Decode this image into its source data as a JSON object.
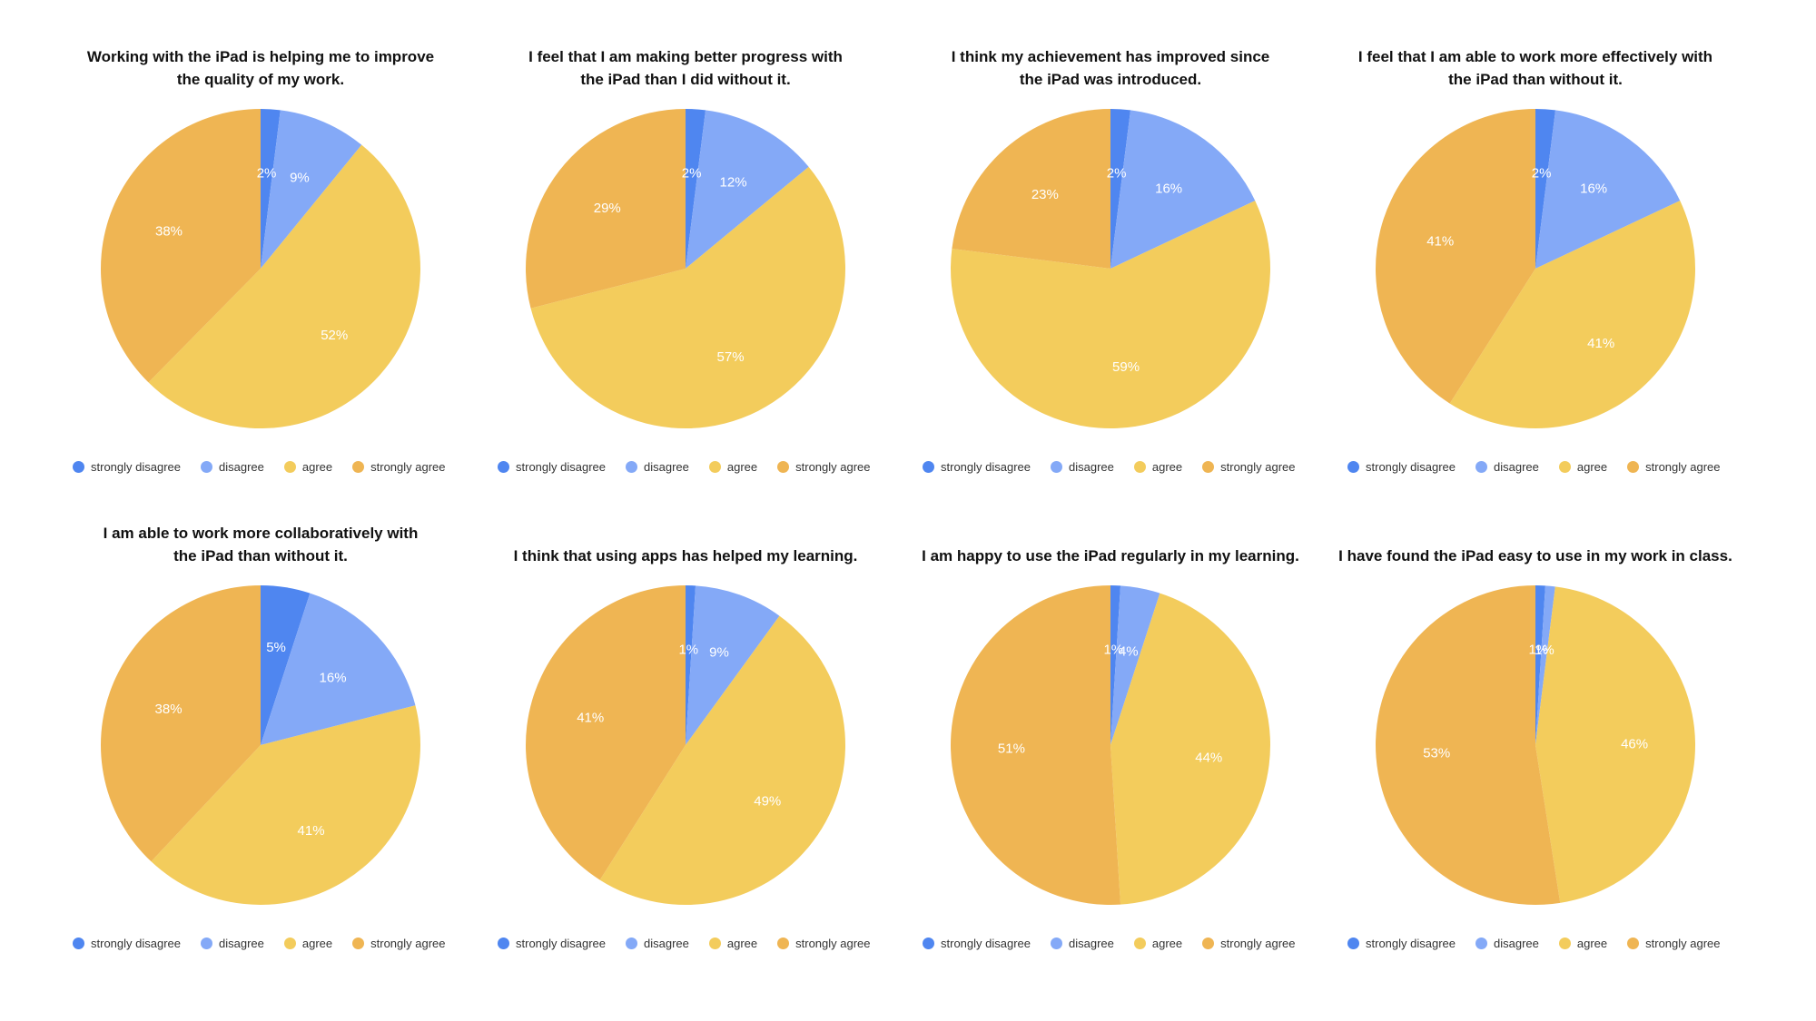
{
  "colors": {
    "strongly_disagree": "#4f86f0",
    "disagree": "#84a9f7",
    "agree": "#f3cc5c",
    "strongly_agree": "#efb553",
    "label_text": "#ffffff"
  },
  "legend": [
    "strongly disagree",
    "disagree",
    "agree",
    "strongly agree"
  ],
  "chart_data": [
    {
      "type": "pie",
      "title_lines": [
        "Working with the iPad is helping me to improve",
        "the quality of my work."
      ],
      "categories": [
        "strongly disagree",
        "disagree",
        "agree",
        "strongly agree"
      ],
      "values": [
        2,
        9,
        52,
        38
      ],
      "labels": [
        "2%",
        "9%",
        "52%",
        "38%"
      ]
    },
    {
      "type": "pie",
      "title_lines": [
        "I feel that I am making better progress with",
        "the iPad than I did without it."
      ],
      "categories": [
        "strongly disagree",
        "disagree",
        "agree",
        "strongly agree"
      ],
      "values": [
        2,
        12,
        57,
        29
      ],
      "labels": [
        "2%",
        "12%",
        "57%",
        "29%"
      ]
    },
    {
      "type": "pie",
      "title_lines": [
        "I think my achievement has improved since",
        "the iPad was introduced."
      ],
      "categories": [
        "strongly disagree",
        "disagree",
        "agree",
        "strongly agree"
      ],
      "values": [
        2,
        16,
        59,
        23
      ],
      "labels": [
        "2%",
        "16%",
        "59%",
        "23%"
      ]
    },
    {
      "type": "pie",
      "title_lines": [
        "I feel that I am able to work more effectively with",
        "the iPad than without it."
      ],
      "categories": [
        "strongly disagree",
        "disagree",
        "agree",
        "strongly agree"
      ],
      "values": [
        2,
        16,
        41,
        41
      ],
      "labels": [
        "2%",
        "16%",
        "41%",
        "41%"
      ]
    },
    {
      "type": "pie",
      "title_lines": [
        "I am able to work more collaboratively with",
        "the iPad than without it."
      ],
      "categories": [
        "strongly disagree",
        "disagree",
        "agree",
        "strongly agree"
      ],
      "values": [
        5,
        16,
        41,
        38
      ],
      "labels": [
        "5%",
        "16%",
        "41%",
        "38%"
      ]
    },
    {
      "type": "pie",
      "title_lines": [
        "I think that using apps has helped my learning."
      ],
      "categories": [
        "strongly disagree",
        "disagree",
        "agree",
        "strongly agree"
      ],
      "values": [
        1,
        9,
        49,
        41
      ],
      "labels": [
        "1%",
        "9%",
        "49%",
        "41%"
      ]
    },
    {
      "type": "pie",
      "title_lines": [
        "I am happy to use the iPad regularly in my learning."
      ],
      "categories": [
        "strongly disagree",
        "disagree",
        "agree",
        "strongly agree"
      ],
      "values": [
        1,
        4,
        44,
        51
      ],
      "labels": [
        "1%",
        "4%",
        "44%",
        "51%"
      ]
    },
    {
      "type": "pie",
      "title_lines": [
        "I have found the iPad easy to use in my work in class."
      ],
      "categories": [
        "strongly disagree",
        "disagree",
        "agree",
        "strongly agree"
      ],
      "values": [
        1,
        1,
        46,
        53
      ],
      "labels": [
        "1%",
        "1%",
        "46%",
        "53%"
      ]
    }
  ]
}
